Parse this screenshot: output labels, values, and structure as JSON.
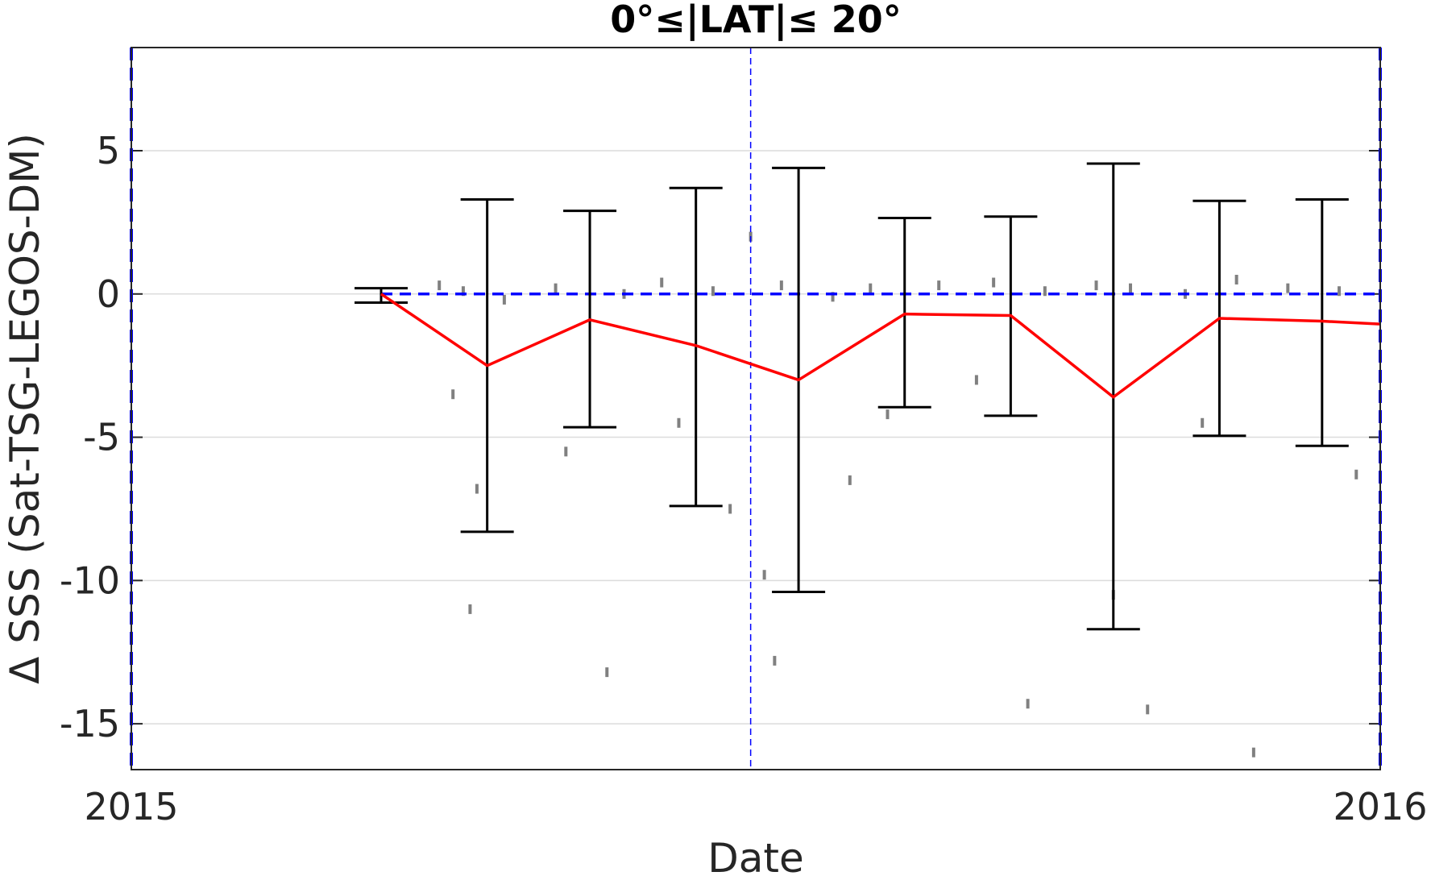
{
  "chart_data": {
    "type": "line",
    "title": "0°≤|LAT|≤ 20°",
    "xlabel": "Date",
    "ylabel": "Δ SSS (Sat-TSG-LEGOS-DM)",
    "xlim": [
      "2015-01-01",
      "2016-01-01"
    ],
    "ylim": [
      -16.6,
      8.6
    ],
    "x_ticks": [
      {
        "value": "2015-01-01",
        "label": "2015"
      },
      {
        "value": "2016-01-01",
        "label": "2016"
      }
    ],
    "y_ticks": [
      5,
      0,
      -5,
      -10,
      -15
    ],
    "grid": "horizontal",
    "reference_lines": [
      {
        "orientation": "horizontal",
        "y": 0,
        "x_start": "2015-03-15",
        "x_end": "2016-01-01",
        "color": "#0000ff",
        "style": "dashed"
      },
      {
        "orientation": "vertical",
        "x": "2015-01-01",
        "color": "#0000ff",
        "style": "dashed"
      },
      {
        "orientation": "vertical",
        "x": "2016-01-01",
        "color": "#0000ff",
        "style": "dashed"
      },
      {
        "orientation": "vertical",
        "x": "2015-07-01",
        "color": "#0000ff",
        "style": "dashed-thin"
      }
    ],
    "series": [
      {
        "style": "line",
        "color": "#ff0000",
        "x": [
          "2015-03-15",
          "2015-04-15",
          "2015-05-15",
          "2015-06-15",
          "2015-07-15",
          "2015-08-15",
          "2015-09-15",
          "2015-10-15",
          "2015-11-15",
          "2015-12-15",
          "2016-01-01"
        ],
        "y": [
          0.0,
          -2.5,
          -0.9,
          -1.8,
          -3.0,
          -0.7,
          -0.75,
          -3.6,
          -0.85,
          -0.95,
          -1.05
        ]
      },
      {
        "style": "errorbar",
        "color": "#000000",
        "x": [
          "2015-03-15",
          "2015-04-15",
          "2015-05-15",
          "2015-06-15",
          "2015-07-15",
          "2015-08-15",
          "2015-09-15",
          "2015-10-15",
          "2015-11-15",
          "2015-12-15"
        ],
        "upper": [
          0.2,
          3.3,
          2.9,
          3.7,
          4.4,
          2.65,
          2.7,
          4.55,
          3.25,
          3.3
        ],
        "lower": [
          -0.3,
          -8.3,
          -4.65,
          -7.4,
          -10.4,
          -3.95,
          -4.25,
          -11.7,
          -4.95,
          -5.3
        ]
      },
      {
        "style": "scatter",
        "color": "#808080",
        "description": "individual match-up differences clustered near 0 with sparse negative outliers down to about -16.4",
        "x": [
          "2015-04-01",
          "2015-04-08",
          "2015-04-20",
          "2015-05-05",
          "2015-05-25",
          "2015-06-05",
          "2015-06-20",
          "2015-07-01",
          "2015-07-10",
          "2015-07-25",
          "2015-08-05",
          "2015-08-25",
          "2015-09-10",
          "2015-09-25",
          "2015-10-10",
          "2015-10-20",
          "2015-11-05",
          "2015-11-20",
          "2015-12-05",
          "2015-12-20",
          "2015-04-05",
          "2015-04-12",
          "2015-05-08",
          "2015-06-10",
          "2015-06-25",
          "2015-07-05",
          "2015-07-30",
          "2015-08-10",
          "2015-09-05",
          "2015-10-15",
          "2015-11-10",
          "2015-12-25",
          "2015-04-10",
          "2015-05-20",
          "2015-07-08",
          "2015-09-20",
          "2015-10-25",
          "2015-11-25"
        ],
        "y": [
          0.3,
          0.1,
          -0.2,
          0.2,
          0.0,
          0.4,
          0.1,
          2.0,
          0.3,
          -0.1,
          0.2,
          0.3,
          0.4,
          0.1,
          0.3,
          0.2,
          0.0,
          0.5,
          0.2,
          0.1,
          -3.5,
          -6.8,
          -5.5,
          -4.5,
          -7.5,
          -9.8,
          -6.5,
          -4.2,
          -3.0,
          -10.5,
          -4.5,
          -6.3,
          -11.0,
          -13.2,
          -12.8,
          -14.3,
          -14.5,
          -16.0
        ]
      }
    ]
  }
}
